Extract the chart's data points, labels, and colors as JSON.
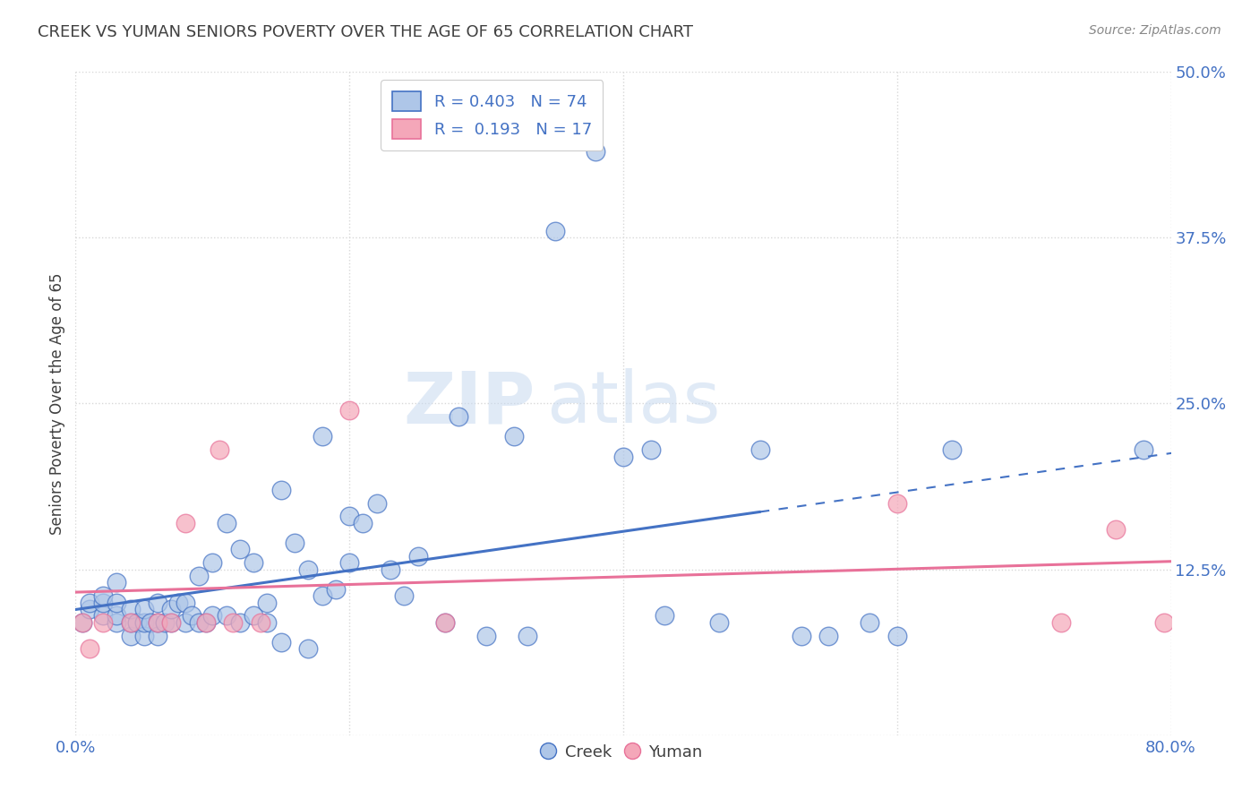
{
  "title": "CREEK VS YUMAN SENIORS POVERTY OVER THE AGE OF 65 CORRELATION CHART",
  "source": "Source: ZipAtlas.com",
  "ylabel": "Seniors Poverty Over the Age of 65",
  "xlim": [
    0.0,
    0.8
  ],
  "ylim": [
    0.0,
    0.5
  ],
  "ytick_values": [
    0.0,
    0.125,
    0.25,
    0.375,
    0.5
  ],
  "watermark": "ZIPatlas",
  "legend_r_creek": "0.403",
  "legend_n_creek": "74",
  "legend_r_yuman": "0.193",
  "legend_n_yuman": "17",
  "creek_color": "#aec6e8",
  "yuman_color": "#f4a7b9",
  "creek_line_color": "#4472c4",
  "yuman_line_color": "#e87199",
  "creek_scatter_x": [
    0.005,
    0.01,
    0.01,
    0.02,
    0.02,
    0.02,
    0.03,
    0.03,
    0.03,
    0.03,
    0.04,
    0.04,
    0.04,
    0.045,
    0.05,
    0.05,
    0.05,
    0.055,
    0.06,
    0.06,
    0.06,
    0.065,
    0.07,
    0.07,
    0.075,
    0.08,
    0.08,
    0.085,
    0.09,
    0.09,
    0.095,
    0.1,
    0.1,
    0.11,
    0.11,
    0.12,
    0.12,
    0.13,
    0.13,
    0.14,
    0.14,
    0.15,
    0.15,
    0.16,
    0.17,
    0.17,
    0.18,
    0.18,
    0.19,
    0.2,
    0.2,
    0.21,
    0.22,
    0.23,
    0.24,
    0.25,
    0.27,
    0.28,
    0.3,
    0.32,
    0.33,
    0.35,
    0.38,
    0.4,
    0.42,
    0.43,
    0.47,
    0.5,
    0.53,
    0.55,
    0.58,
    0.6,
    0.64,
    0.78
  ],
  "creek_scatter_y": [
    0.085,
    0.095,
    0.1,
    0.09,
    0.1,
    0.105,
    0.085,
    0.09,
    0.1,
    0.115,
    0.075,
    0.085,
    0.095,
    0.085,
    0.075,
    0.085,
    0.095,
    0.085,
    0.075,
    0.085,
    0.1,
    0.085,
    0.085,
    0.095,
    0.1,
    0.085,
    0.1,
    0.09,
    0.085,
    0.12,
    0.085,
    0.09,
    0.13,
    0.09,
    0.16,
    0.085,
    0.14,
    0.09,
    0.13,
    0.085,
    0.1,
    0.07,
    0.185,
    0.145,
    0.125,
    0.065,
    0.105,
    0.225,
    0.11,
    0.13,
    0.165,
    0.16,
    0.175,
    0.125,
    0.105,
    0.135,
    0.085,
    0.24,
    0.075,
    0.225,
    0.075,
    0.38,
    0.44,
    0.21,
    0.215,
    0.09,
    0.085,
    0.215,
    0.075,
    0.075,
    0.085,
    0.075,
    0.215,
    0.215
  ],
  "yuman_scatter_x": [
    0.005,
    0.01,
    0.02,
    0.04,
    0.06,
    0.07,
    0.08,
    0.095,
    0.105,
    0.115,
    0.135,
    0.2,
    0.27,
    0.6,
    0.72,
    0.76,
    0.795
  ],
  "yuman_scatter_y": [
    0.085,
    0.065,
    0.085,
    0.085,
    0.085,
    0.085,
    0.16,
    0.085,
    0.215,
    0.085,
    0.085,
    0.245,
    0.085,
    0.175,
    0.085,
    0.155,
    0.085
  ],
  "background_color": "#ffffff",
  "grid_color": "#d8d8d8",
  "title_color": "#404040",
  "axis_tick_color": "#4472c4",
  "title_fontsize": 13,
  "figsize": [
    14.06,
    8.92
  ]
}
